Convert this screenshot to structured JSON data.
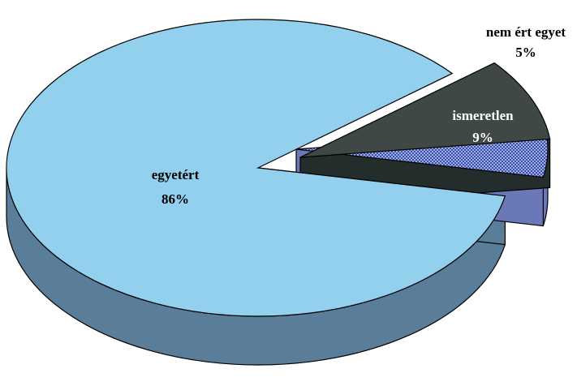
{
  "chart_data": {
    "type": "pie",
    "style": "3d-exploded",
    "slices": [
      {
        "name": "egyetért",
        "value": 86,
        "percent_label": "86%",
        "color": "#92D0EE",
        "side_color": "#5A7D99",
        "label_color": "dark"
      },
      {
        "name": "nem ért egyet",
        "value": 5,
        "percent_label": "5%",
        "color": "#9FB0E8",
        "side_color": "#6B78B8",
        "pattern": "checkered",
        "label_color": "dark"
      },
      {
        "name": "ismeretlen",
        "value": 9,
        "percent_label": "9%",
        "color": "#404846",
        "side_color": "#232D2B",
        "label_color": "light"
      }
    ],
    "legend": "none"
  }
}
